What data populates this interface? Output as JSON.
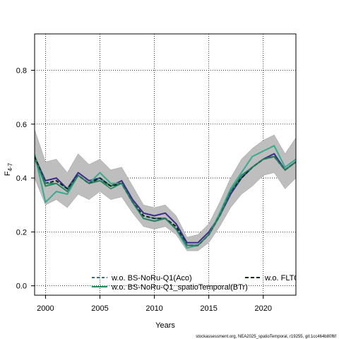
{
  "chart_data": {
    "type": "line",
    "title": "",
    "xlabel": "Years",
    "ylabel_main": "F",
    "ylabel_sub": "4-7",
    "xlim": [
      1999,
      2023
    ],
    "ylim": [
      -0.035,
      0.935
    ],
    "x_ticks": [
      2000,
      2005,
      2010,
      2015,
      2020
    ],
    "y_ticks": [
      0.0,
      0.2,
      0.4,
      0.6,
      0.8
    ],
    "y_tick_labels": [
      "0.0",
      "0.2",
      "0.4",
      "0.6",
      "0.8"
    ],
    "grid": true,
    "legend_position": "bottom",
    "x": [
      1999,
      2000,
      2001,
      2002,
      2003,
      2004,
      2005,
      2006,
      2007,
      2008,
      2009,
      2010,
      2011,
      2012,
      2013,
      2014,
      2015,
      2016,
      2017,
      2018,
      2019,
      2020,
      2021,
      2022,
      2023
    ],
    "band": {
      "color": "#bebebe",
      "lower": [
        0.4,
        0.3,
        0.32,
        0.29,
        0.34,
        0.32,
        0.35,
        0.32,
        0.33,
        0.27,
        0.22,
        0.21,
        0.22,
        0.19,
        0.13,
        0.13,
        0.16,
        0.22,
        0.29,
        0.34,
        0.37,
        0.41,
        0.42,
        0.36,
        0.4
      ],
      "upper": [
        0.58,
        0.46,
        0.47,
        0.42,
        0.49,
        0.45,
        0.47,
        0.43,
        0.44,
        0.37,
        0.3,
        0.29,
        0.3,
        0.26,
        0.18,
        0.19,
        0.23,
        0.31,
        0.4,
        0.47,
        0.51,
        0.54,
        0.56,
        0.49,
        0.55
      ]
    },
    "series": [
      {
        "name": "",
        "color": "#3b2c8c",
        "width": 2,
        "values": [
          0.48,
          0.39,
          0.4,
          0.36,
          0.42,
          0.39,
          0.4,
          0.37,
          0.39,
          0.32,
          0.27,
          0.26,
          0.27,
          0.23,
          0.16,
          0.16,
          0.2,
          0.26,
          0.34,
          0.4,
          0.44,
          0.47,
          0.49,
          0.43,
          0.46
        ]
      },
      {
        "name": "",
        "color": "#3aaa8f",
        "width": 2,
        "values": [
          0.49,
          0.31,
          0.35,
          0.34,
          0.41,
          0.38,
          0.42,
          0.38,
          0.38,
          0.31,
          0.25,
          0.24,
          0.25,
          0.21,
          0.14,
          0.15,
          0.19,
          0.27,
          0.36,
          0.42,
          0.48,
          0.5,
          0.52,
          0.44,
          0.47
        ]
      },
      {
        "name": "w.o. BS-NoRu-Q1(Aco)",
        "color": "#2a6f8e",
        "width": 2,
        "dash": "4,3",
        "values": [
          0.48,
          0.38,
          0.39,
          0.36,
          0.41,
          0.38,
          0.4,
          0.37,
          0.38,
          0.31,
          0.26,
          0.25,
          0.25,
          0.22,
          0.15,
          0.15,
          0.19,
          0.26,
          0.35,
          0.4,
          0.44,
          0.47,
          0.48,
          0.43,
          0.46
        ]
      },
      {
        "name": "w.o. BS-NoRu-Q1_spatioTemporal(BTr)",
        "color": "#21915b",
        "width": 2,
        "values": [
          0.48,
          0.37,
          0.38,
          0.35,
          0.41,
          0.38,
          0.39,
          0.37,
          0.38,
          0.31,
          0.25,
          0.24,
          0.25,
          0.21,
          0.15,
          0.15,
          0.19,
          0.26,
          0.35,
          0.41,
          0.44,
          0.47,
          0.48,
          0.43,
          0.46
        ]
      },
      {
        "name": "w.o. FLT0",
        "color": "#0a2a10",
        "width": 2,
        "dash": "5,3",
        "values": [
          0.48,
          0.38,
          0.39,
          0.36,
          0.41,
          0.38,
          0.4,
          0.37,
          0.38,
          0.31,
          0.26,
          0.25,
          0.25,
          0.22,
          0.15,
          0.15,
          0.19,
          0.26,
          0.35,
          0.4,
          0.44,
          0.47,
          0.48,
          0.43,
          0.46
        ]
      },
      {
        "name": "",
        "color": "#2c7e6a",
        "width": 1.5,
        "values": [
          0.47,
          0.38,
          0.38,
          0.35,
          0.41,
          0.38,
          0.39,
          0.36,
          0.38,
          0.31,
          0.25,
          0.24,
          0.25,
          0.21,
          0.15,
          0.15,
          0.19,
          0.26,
          0.35,
          0.41,
          0.44,
          0.47,
          0.48,
          0.43,
          0.46
        ]
      }
    ],
    "legend": [
      {
        "label": "w.o. BS-NoRu-Q1(Aco)",
        "color": "#2a6f8e",
        "dash": "4,3"
      },
      {
        "label": "w.o. BS-NoRu-Q1_spatioTemporal(BTr)",
        "color": "#21915b",
        "dash": ""
      },
      {
        "label": "w.o. FLT0",
        "color": "#0a2a10",
        "dash": "5,3"
      }
    ]
  },
  "watermark": "stockassessment.org, NEA2025_spatioTemporal, r19255, git:1cc464b80f6f"
}
